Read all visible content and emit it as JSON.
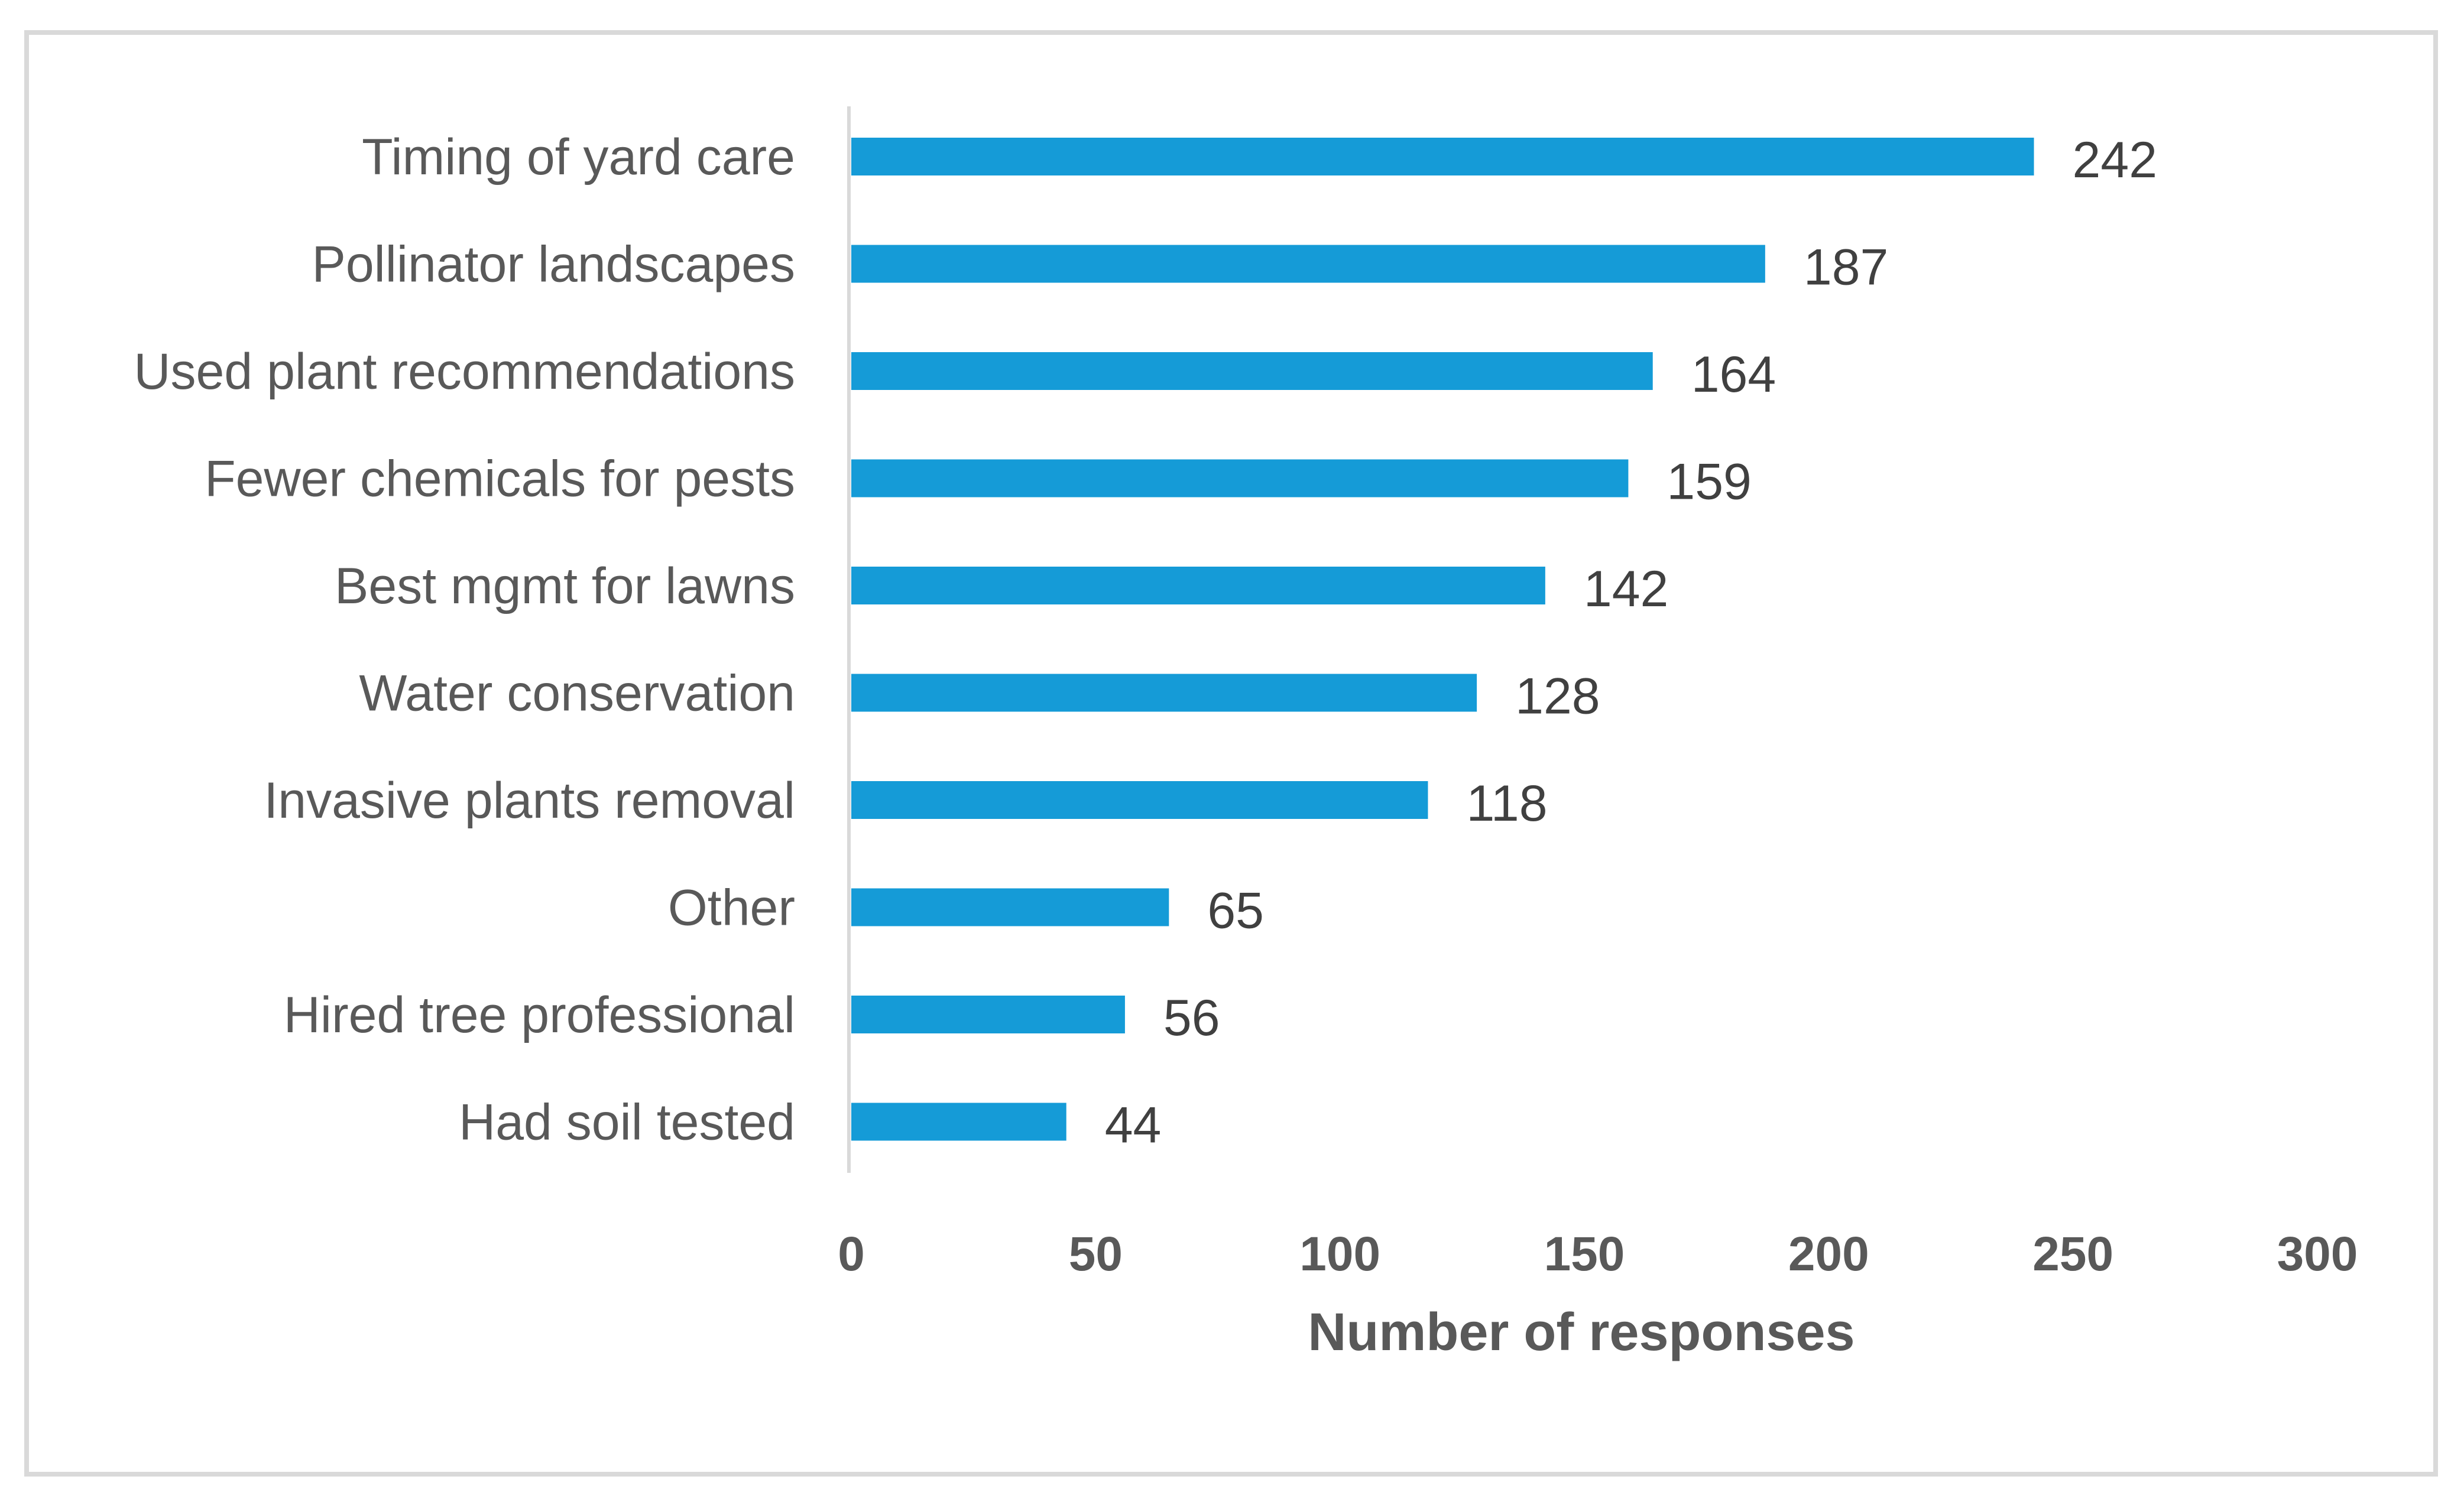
{
  "chart_data": {
    "type": "bar",
    "orientation": "horizontal",
    "title": "",
    "categories": [
      "Timing of yard care",
      "Pollinator landscapes",
      "Used plant recommendations",
      "Fewer chemicals for pests",
      "Best mgmt for lawns",
      "Water conservation",
      "Invasive plants removal",
      "Other",
      "Hired tree professional",
      "Had soil tested"
    ],
    "values": [
      242,
      187,
      164,
      159,
      142,
      128,
      118,
      65,
      56,
      44
    ],
    "xlabel": "Number of responses",
    "ylabel": "",
    "xlim": [
      0,
      300
    ],
    "xticks": [
      0,
      50,
      100,
      150,
      200,
      250,
      300
    ],
    "grid": false,
    "legend": "none",
    "bar_color": "#159BD7",
    "data_labels": true
  }
}
